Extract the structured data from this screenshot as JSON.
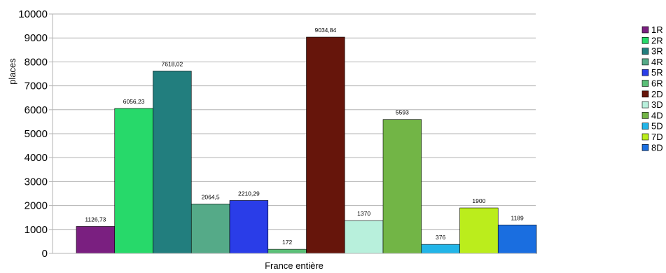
{
  "chart_data": {
    "type": "bar",
    "title": "",
    "xlabel": "France entière",
    "ylabel": "places",
    "categories": [
      "France entière"
    ],
    "ylim": [
      0,
      10000
    ],
    "yticks": [
      "0",
      "1000",
      "2000",
      "3000",
      "4000",
      "5000",
      "6000",
      "7000",
      "8000",
      "9000",
      "10000"
    ],
    "grid": true,
    "legend_position": "right",
    "series": [
      {
        "name": "1R",
        "values": [
          1126.73
        ],
        "label": "1126,73",
        "color": "#7a1f80"
      },
      {
        "name": "2R",
        "values": [
          6056.23
        ],
        "label": "6056,23",
        "color": "#27d96a"
      },
      {
        "name": "3R",
        "values": [
          7618.02
        ],
        "label": "7618,02",
        "color": "#227e7e"
      },
      {
        "name": "4R",
        "values": [
          2064.5
        ],
        "label": "2064,5",
        "color": "#55aa88"
      },
      {
        "name": "5R",
        "values": [
          2210.29
        ],
        "label": "2210,29",
        "color": "#2a3de8"
      },
      {
        "name": "6R",
        "values": [
          172
        ],
        "label": "172",
        "color": "#5abf77"
      },
      {
        "name": "2D",
        "values": [
          9034.84
        ],
        "label": "9034,84",
        "color": "#66150b"
      },
      {
        "name": "3D",
        "values": [
          1370
        ],
        "label": "1370",
        "color": "#b8f0dc"
      },
      {
        "name": "4D",
        "values": [
          5593
        ],
        "label": "5593",
        "color": "#72b546"
      },
      {
        "name": "5D",
        "values": [
          376
        ],
        "label": "376",
        "color": "#22b5e8"
      },
      {
        "name": "7D",
        "values": [
          1900
        ],
        "label": "1900",
        "color": "#bbed1c"
      },
      {
        "name": "8D",
        "values": [
          1189
        ],
        "label": "1189",
        "color": "#1a6ee0"
      }
    ]
  }
}
